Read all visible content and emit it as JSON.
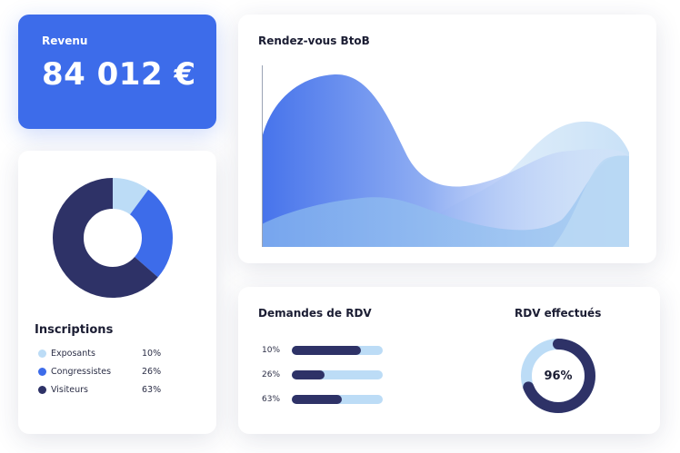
{
  "revenue": {
    "label": "Revenu",
    "value": "84 012 €"
  },
  "inscriptions": {
    "title": "Inscriptions",
    "items": [
      {
        "name": "Exposants",
        "value": "10%",
        "percent": 10,
        "color": "#bcdcf6"
      },
      {
        "name": "Congressistes",
        "value": "26%",
        "percent": 26,
        "color": "#3d6cea"
      },
      {
        "name": "Visiteurs",
        "value": "63%",
        "percent": 63,
        "color": "#2e3267"
      }
    ]
  },
  "btob": {
    "title": "Rendez-vous BtoB"
  },
  "demandes": {
    "title": "Demandes de RDV",
    "rows": [
      {
        "label": "10%",
        "percent": 76
      },
      {
        "label": "26%",
        "percent": 36
      },
      {
        "label": "63%",
        "percent": 55
      }
    ]
  },
  "effectues": {
    "title": "RDV effectués",
    "value": "96%",
    "percent": 96
  },
  "colors": {
    "accent": "#3d6cea",
    "navy": "#2e3267",
    "light_blue": "#bcdcf6"
  }
}
